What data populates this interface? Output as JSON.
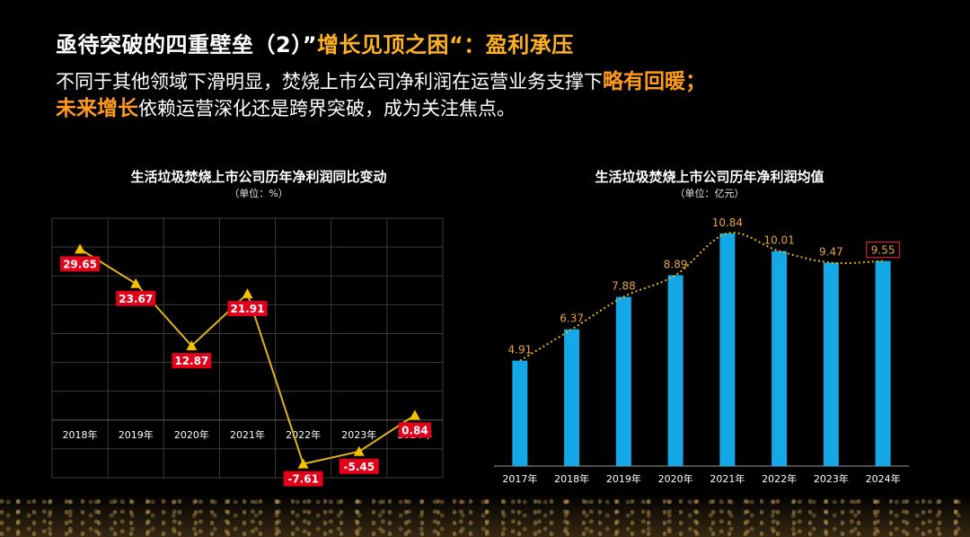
{
  "header": {
    "title_main": "亟待突破的四重壁垒（2）”",
    "title_highlight": "增长见顶之困“：盈利承压",
    "line1_text": "不同于其他领域下滑明显，焚烧上市公司净利润在运营业务支撑下",
    "line1_highlight": "略有回暖；",
    "line2_highlight": "未来增长",
    "line2_text": "依赖运营深化还是跨界突破，成为关注焦点。"
  },
  "colors": {
    "line": "#e3b31a",
    "marker": "#f5c000",
    "label_bg": "#e3001b",
    "bar": "#14a9e6",
    "bar_label": "#e8a33d",
    "trend": "#e3b31a",
    "highlight_box": "#d2232a"
  },
  "chart_data": [
    {
      "type": "line",
      "title": "生活垃圾焚烧上市公司历年净利润同比变动",
      "unit": "（单位：%）",
      "categories": [
        "2018年",
        "2019年",
        "2020年",
        "2021年",
        "2022年",
        "2023年",
        "2024年"
      ],
      "series": [
        {
          "values": [
            29.65,
            23.67,
            12.87,
            21.91,
            -7.61,
            -5.45,
            0.84
          ]
        }
      ],
      "data_labels": [
        "29.65",
        "23.67",
        "12.87",
        "21.91",
        "-7.61",
        "-5.45",
        "0.84"
      ],
      "ylim": [
        -10,
        35
      ],
      "grid": true
    },
    {
      "type": "bar",
      "title": "生活垃圾焚烧上市公司历年净利润均值",
      "unit": "（单位：亿元）",
      "categories": [
        "2017年",
        "2018年",
        "2019年",
        "2020年",
        "2021年",
        "2022年",
        "2023年",
        "2024年"
      ],
      "values": [
        4.91,
        6.37,
        7.88,
        8.89,
        10.84,
        10.01,
        9.47,
        9.55
      ],
      "data_labels": [
        "4.91",
        "6.37",
        "7.88",
        "8.89",
        "10.84",
        "10.01",
        "9.47",
        "9.55"
      ],
      "highlighted_label": "9.55",
      "trendline": "dotted",
      "ylim": [
        0,
        11.5
      ],
      "grid": false
    }
  ]
}
